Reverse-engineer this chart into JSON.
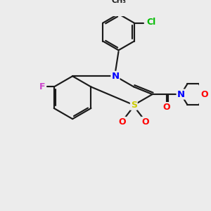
{
  "background_color": "#ececec",
  "bond_color": "#1a1a1a",
  "atom_colors": {
    "N": "#0000ff",
    "O": "#ff0000",
    "S": "#cccc00",
    "F": "#cc44cc",
    "Cl": "#00bb00"
  },
  "figsize": [
    3.0,
    3.0
  ],
  "dpi": 100
}
